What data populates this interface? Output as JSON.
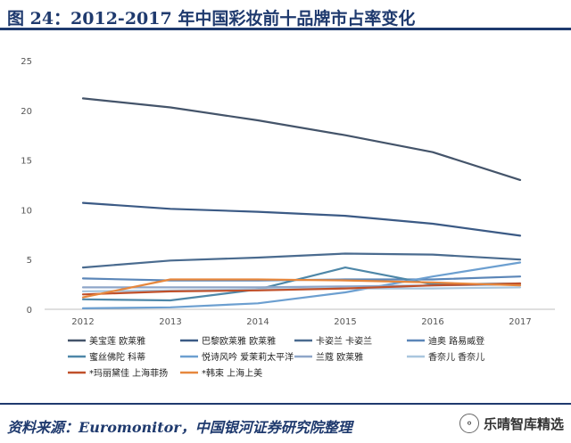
{
  "header": {
    "title": "图 24：2012-2017 年中国彩妆前十品牌市占率变化"
  },
  "footer": {
    "source": "资料来源：Euromonitor，中国银河证券研究院整理",
    "watermark": "乐晴智库精选"
  },
  "chart_data": {
    "type": "line",
    "title": "",
    "xlabel": "",
    "ylabel": "",
    "x": [
      "2012",
      "2013",
      "2014",
      "2015",
      "2016",
      "2017"
    ],
    "yticks": [
      0,
      5,
      10,
      15,
      20,
      25
    ],
    "ylim": [
      0,
      25
    ],
    "grid": false,
    "legend_position": "bottom",
    "series": [
      {
        "name": "美宝莲 欧莱雅",
        "color": "#44546a",
        "values": [
          21.2,
          20.3,
          19.0,
          17.5,
          15.8,
          13.0
        ]
      },
      {
        "name": "巴黎欧莱雅 欧莱雅",
        "color": "#3b5a85",
        "values": [
          10.7,
          10.1,
          9.8,
          9.4,
          8.6,
          7.4
        ]
      },
      {
        "name": "卡姿兰 卡姿兰",
        "color": "#4a6b8f",
        "values": [
          4.2,
          4.9,
          5.2,
          5.6,
          5.5,
          5.0
        ]
      },
      {
        "name": "迪奥 路易威登",
        "color": "#5b86b8",
        "values": [
          3.1,
          2.9,
          2.9,
          3.0,
          3.0,
          3.3
        ]
      },
      {
        "name": "蜜丝佛陀 科蒂",
        "color": "#4e87a8",
        "values": [
          1.0,
          0.9,
          2.0,
          4.2,
          2.5,
          2.6
        ]
      },
      {
        "name": "悦诗风吟 爱茉莉太平洋",
        "color": "#6c9fd0",
        "values": [
          0.1,
          0.2,
          0.6,
          1.7,
          3.3,
          4.7
        ]
      },
      {
        "name": "兰蔻 欧莱雅",
        "color": "#8ea6c8",
        "values": [
          2.2,
          2.2,
          2.2,
          2.3,
          2.4,
          2.5
        ]
      },
      {
        "name": "香奈儿 香奈儿",
        "color": "#a9c6de",
        "values": [
          1.8,
          1.9,
          2.0,
          2.1,
          2.1,
          2.2
        ]
      },
      {
        "name": "*玛丽黛佳 上海菲扬",
        "color": "#c0502a",
        "values": [
          1.5,
          1.8,
          1.9,
          2.1,
          2.4,
          2.6
        ]
      },
      {
        "name": "*韩束 上海上美",
        "color": "#e6873d",
        "values": [
          1.2,
          3.0,
          3.0,
          2.9,
          2.7,
          2.4
        ]
      }
    ]
  }
}
